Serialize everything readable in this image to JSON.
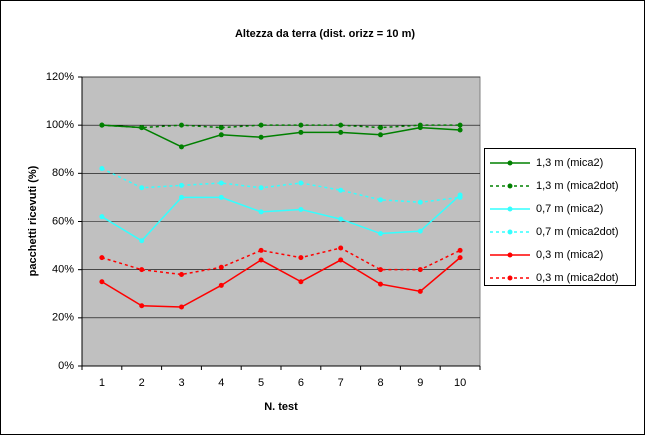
{
  "chart_data": {
    "type": "line",
    "title": "Altezza da terra (dist. orizz = 10 m)",
    "x_label": "N. test",
    "y_label": "pacchetti ricevuti (%)",
    "categories": [
      "1",
      "2",
      "3",
      "4",
      "5",
      "6",
      "7",
      "8",
      "9",
      "10"
    ],
    "ylim": [
      0,
      120
    ],
    "yticks": [
      {
        "value": 0,
        "label": "0%"
      },
      {
        "value": 20,
        "label": "20%"
      },
      {
        "value": 40,
        "label": "40%"
      },
      {
        "value": 60,
        "label": "60%"
      },
      {
        "value": 80,
        "label": "80%"
      },
      {
        "value": 100,
        "label": "100%"
      },
      {
        "value": 120,
        "label": "120%"
      }
    ],
    "grid": true,
    "legend": "right",
    "series": [
      {
        "name": "1,3 m (mica2)",
        "color": "#008000",
        "line_style": "solid",
        "values": [
          100,
          99,
          91,
          96,
          95,
          97,
          97,
          96,
          99,
          98
        ]
      },
      {
        "name": "1,3 m (mica2dot)",
        "color": "#008000",
        "line_style": "dotted",
        "values": [
          100,
          99,
          100,
          99,
          100,
          100,
          100,
          99,
          100,
          100
        ]
      },
      {
        "name": "0,7 m (mica2)",
        "color": "#33ffff",
        "line_style": "solid",
        "values": [
          62,
          52,
          70,
          70,
          64,
          65,
          61,
          55,
          56,
          71
        ]
      },
      {
        "name": "0,7 m (mica2dot)",
        "color": "#33ffff",
        "line_style": "dotted",
        "values": [
          82,
          74,
          75,
          76,
          74,
          76,
          73,
          69,
          68,
          70
        ]
      },
      {
        "name": "0,3 m (mica2)",
        "color": "#ff0000",
        "line_style": "solid",
        "values": [
          35,
          25,
          24.5,
          33.5,
          44,
          35,
          44,
          34,
          31,
          45
        ]
      },
      {
        "name": "0,3 m (mica2dot)",
        "color": "#ff0000",
        "line_style": "dotted",
        "values": [
          45,
          40,
          38,
          41,
          48,
          45,
          49,
          40,
          40,
          48
        ]
      }
    ]
  }
}
